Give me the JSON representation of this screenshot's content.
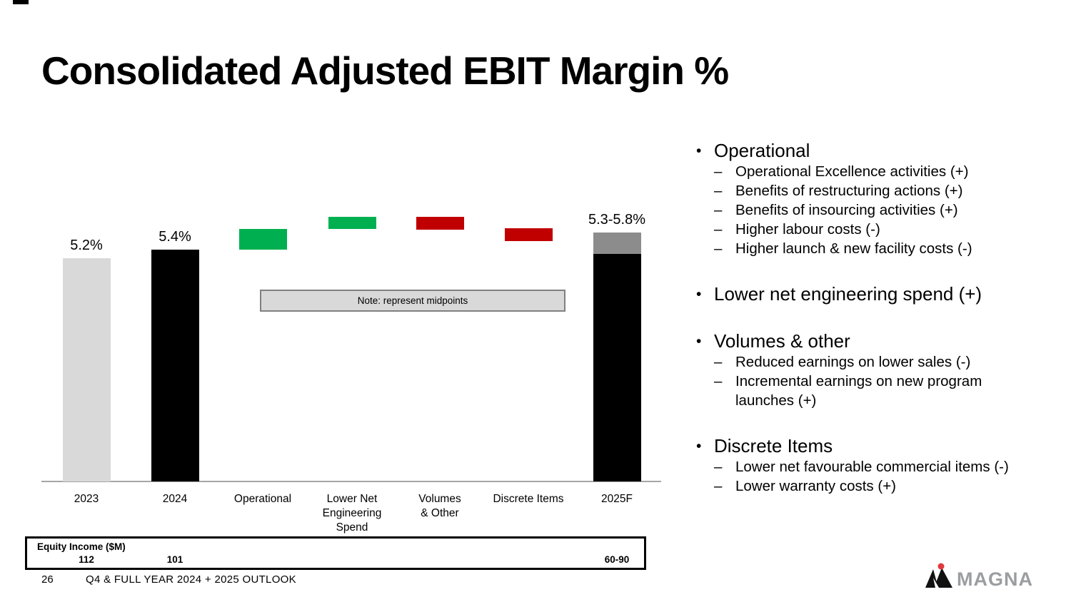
{
  "title": "Consolidated Adjusted EBIT Margin %",
  "chart_data": {
    "type": "waterfall",
    "title": "Consolidated Adjusted EBIT Margin %",
    "unit": "percent",
    "note": "Note: represent midpoints",
    "axis": {
      "baseline_value": 0,
      "value_range_shown": [
        0,
        6.2
      ],
      "gridlines": false
    },
    "colors": {
      "prior_year": "#d9d9d9",
      "actual": "#000000",
      "increase": "#00b050",
      "decrease": "#c00000",
      "forecast_range": "#8c8c8c"
    },
    "bars": [
      {
        "label_lines": [
          "2023"
        ],
        "role": "total",
        "value_label": "5.2%",
        "segments": [
          {
            "from": 0,
            "to": 5.2,
            "color": "#d9d9d9"
          }
        ]
      },
      {
        "label_lines": [
          "2024"
        ],
        "role": "total",
        "value_label": "5.4%",
        "segments": [
          {
            "from": 0,
            "to": 5.4,
            "color": "#000000"
          }
        ]
      },
      {
        "label_lines": [
          "Operational"
        ],
        "role": "increase",
        "value_label": "",
        "segments": [
          {
            "from": 5.4,
            "to": 5.88,
            "color": "#00b050"
          }
        ]
      },
      {
        "label_lines": [
          "Lower Net",
          "Engineering",
          "Spend"
        ],
        "role": "increase",
        "value_label": "",
        "segments": [
          {
            "from": 5.88,
            "to": 6.17,
            "color": "#00b050"
          }
        ]
      },
      {
        "label_lines": [
          "Volumes",
          "& Other"
        ],
        "role": "decrease",
        "value_label": "",
        "segments": [
          {
            "from": 5.87,
            "to": 6.17,
            "color": "#c00000"
          }
        ]
      },
      {
        "label_lines": [
          "Discrete Items"
        ],
        "role": "decrease",
        "value_label": "",
        "segments": [
          {
            "from": 5.6,
            "to": 5.9,
            "color": "#c00000"
          }
        ]
      },
      {
        "label_lines": [
          "2025F"
        ],
        "role": "total",
        "value_label": "5.3-5.8%",
        "segments": [
          {
            "from": 0,
            "to": 5.3,
            "color": "#000000"
          },
          {
            "from": 5.3,
            "to": 5.8,
            "color": "#8c8c8c"
          }
        ]
      }
    ]
  },
  "equity_box": {
    "label": "Equity Income ($M)",
    "values": [
      {
        "text": "112",
        "bar": 0
      },
      {
        "text": "101",
        "bar": 1
      },
      {
        "text": "60-90",
        "bar": 6
      }
    ]
  },
  "bullets": [
    {
      "title": "Operational",
      "items": [
        "Operational Excellence activities (+)",
        "Benefits of restructuring actions (+)",
        "Benefits of insourcing activities (+)",
        "Higher labour costs (-)",
        "Higher launch & new facility costs (-)"
      ]
    },
    {
      "title": "Lower net engineering spend (+)",
      "items": []
    },
    {
      "title": "Volumes & other",
      "items": [
        "Reduced earnings on lower sales (-)",
        "Incremental earnings on new program launches (+)"
      ]
    },
    {
      "title": "Discrete Items",
      "items": [
        "Lower net favourable commercial items (-)",
        "Lower warranty costs (+)"
      ]
    }
  ],
  "footer": {
    "page_number": "26",
    "text": "Q4 & FULL YEAR 2024 + 2025 OUTLOOK",
    "logo_text": "MAGNA"
  },
  "logo_colors": {
    "text_gray": "#9b9ea1",
    "dot_red": "#e0393e",
    "mark_black": "#111111"
  }
}
